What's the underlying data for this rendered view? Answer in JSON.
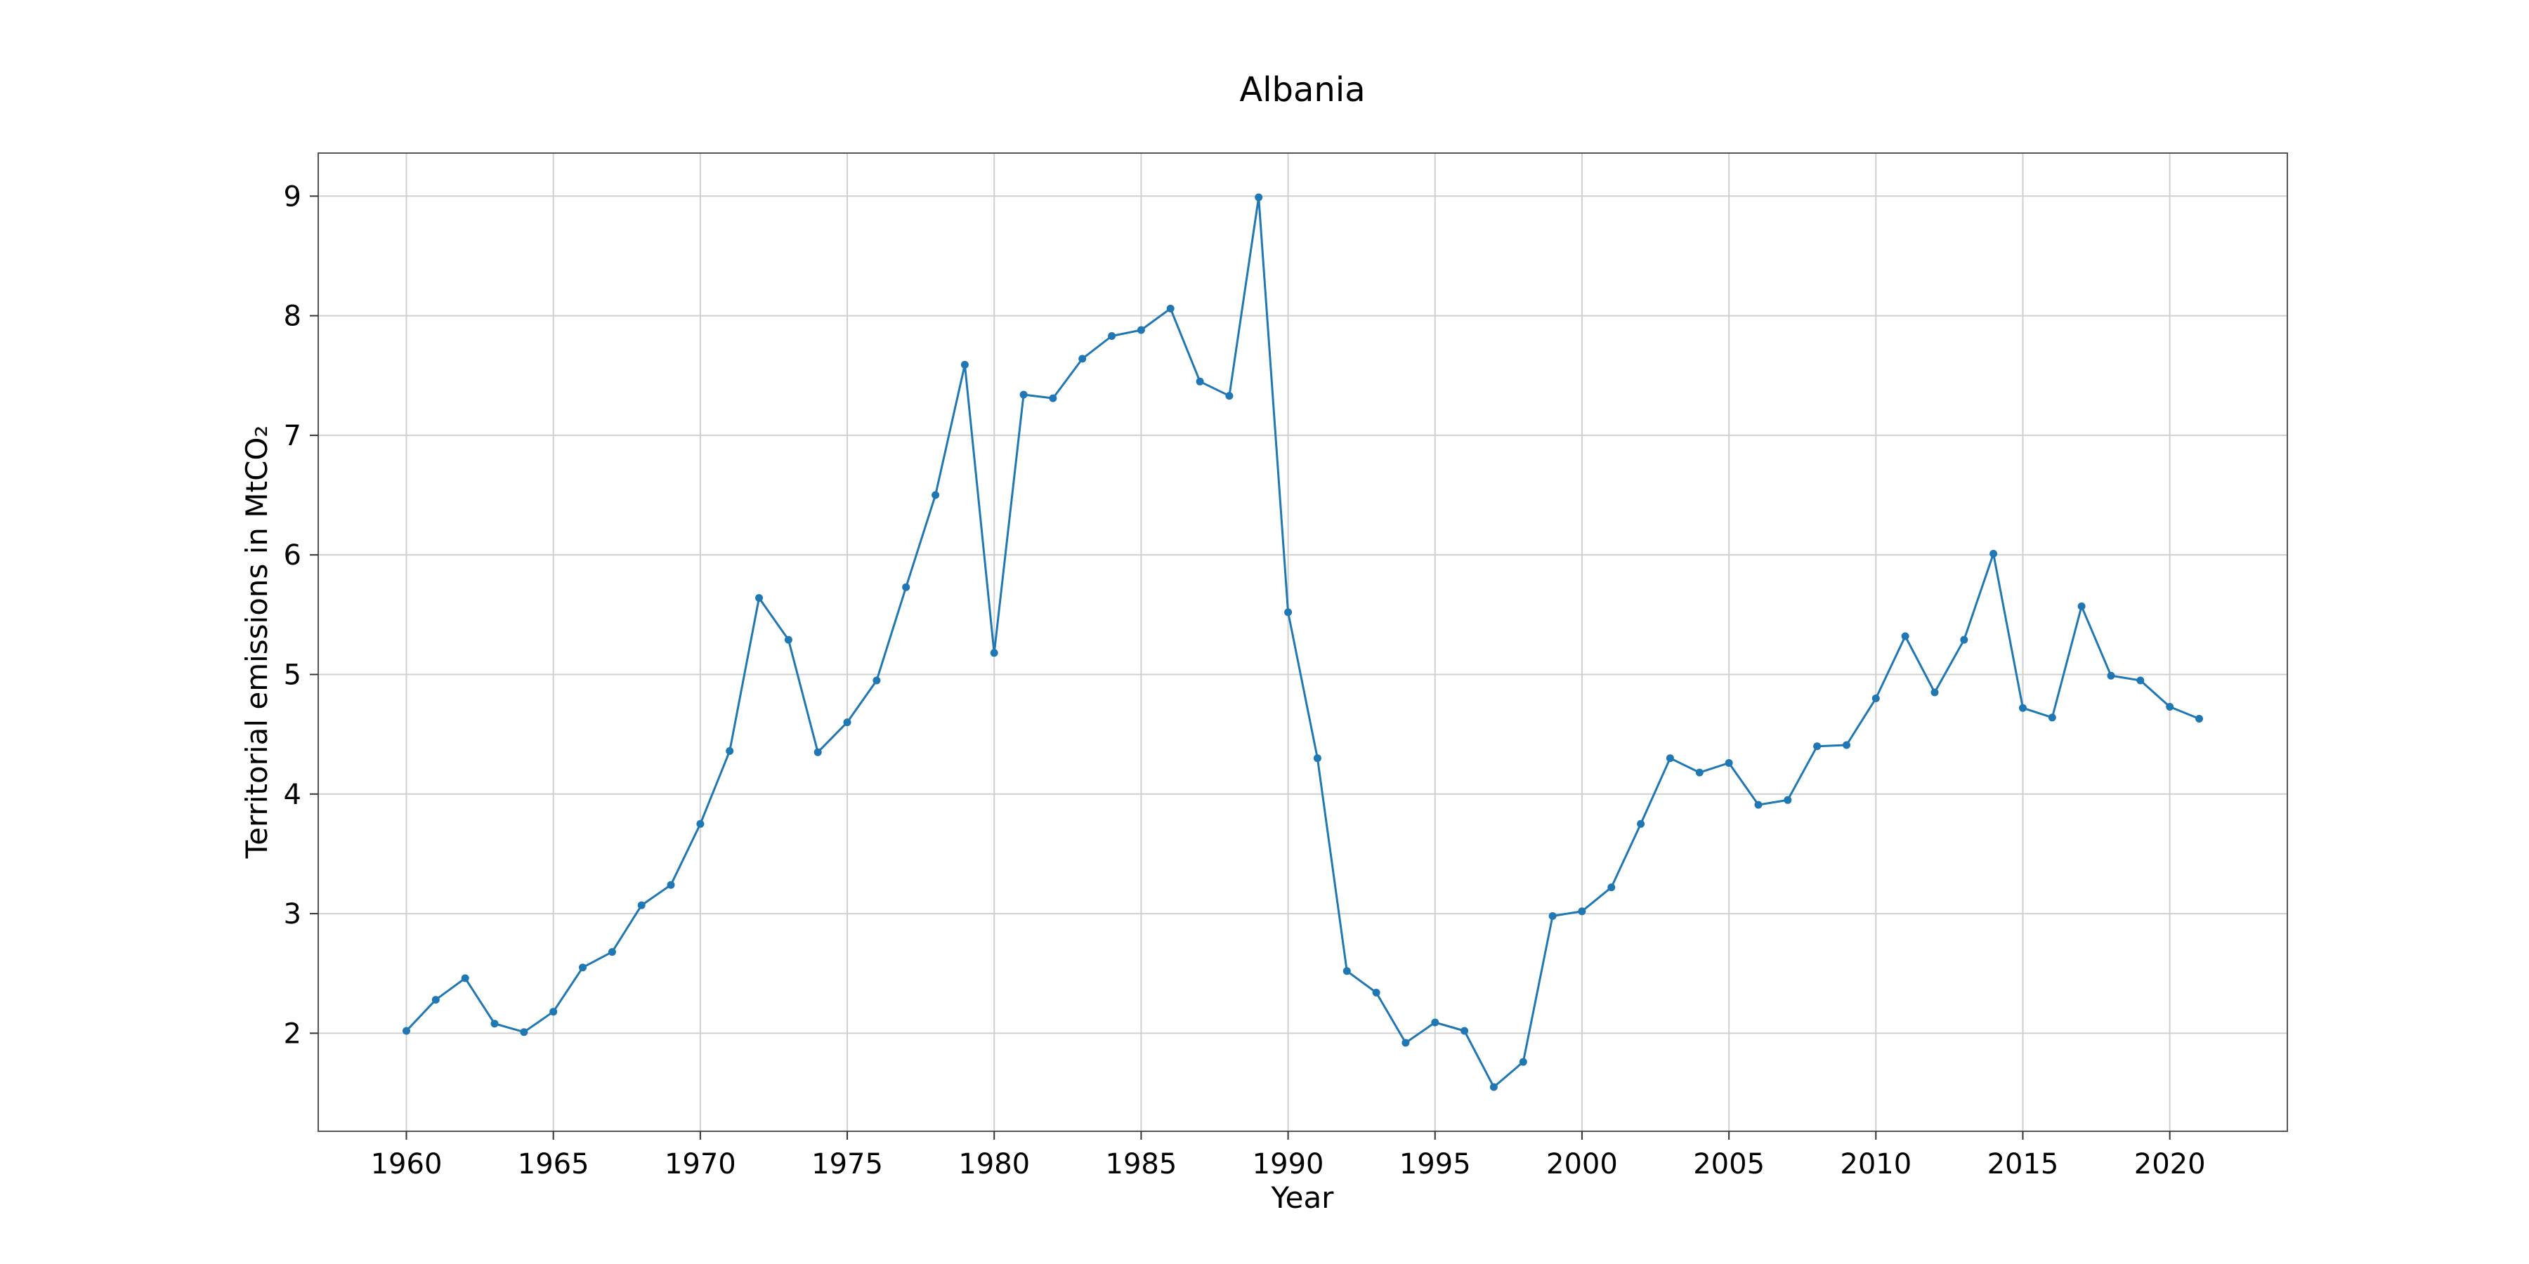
{
  "chart_data": {
    "type": "line",
    "title": "Albania",
    "xlabel": "Year",
    "ylabel": "Territorial emissions in MtCO₂",
    "xlim": [
      1957,
      2024
    ],
    "ylim": [
      1.18,
      9.36
    ],
    "xticks": [
      1960,
      1965,
      1970,
      1975,
      1980,
      1985,
      1990,
      1995,
      2000,
      2005,
      2010,
      2015,
      2020
    ],
    "yticks": [
      2,
      3,
      4,
      5,
      6,
      7,
      8,
      9
    ],
    "grid": true,
    "legend": "none",
    "series": [
      {
        "color": "#1f77b4",
        "x": [
          1960,
          1961,
          1962,
          1963,
          1964,
          1965,
          1966,
          1967,
          1968,
          1969,
          1970,
          1971,
          1972,
          1973,
          1974,
          1975,
          1976,
          1977,
          1978,
          1979,
          1980,
          1981,
          1982,
          1983,
          1984,
          1985,
          1986,
          1987,
          1988,
          1989,
          1990,
          1991,
          1992,
          1993,
          1994,
          1995,
          1996,
          1997,
          1998,
          1999,
          2000,
          2001,
          2002,
          2003,
          2004,
          2005,
          2006,
          2007,
          2008,
          2009,
          2010,
          2011,
          2012,
          2013,
          2014,
          2015,
          2016,
          2017,
          2018,
          2019,
          2020,
          2021
        ],
        "y": [
          2.02,
          2.28,
          2.46,
          2.08,
          2.01,
          2.18,
          2.55,
          2.68,
          3.07,
          3.24,
          3.75,
          4.36,
          5.64,
          5.29,
          4.35,
          4.6,
          4.95,
          5.73,
          6.5,
          7.59,
          5.18,
          7.34,
          7.31,
          7.64,
          7.83,
          7.88,
          8.06,
          7.45,
          7.33,
          8.99,
          5.52,
          4.3,
          2.52,
          2.34,
          1.92,
          2.09,
          2.02,
          1.55,
          1.76,
          2.98,
          3.02,
          3.22,
          3.75,
          4.3,
          4.18,
          4.26,
          3.91,
          3.95,
          4.4,
          4.41,
          4.8,
          5.32,
          4.85,
          5.29,
          6.01,
          4.72,
          4.64,
          5.57,
          4.99,
          4.95,
          4.73,
          4.63
        ]
      }
    ]
  }
}
